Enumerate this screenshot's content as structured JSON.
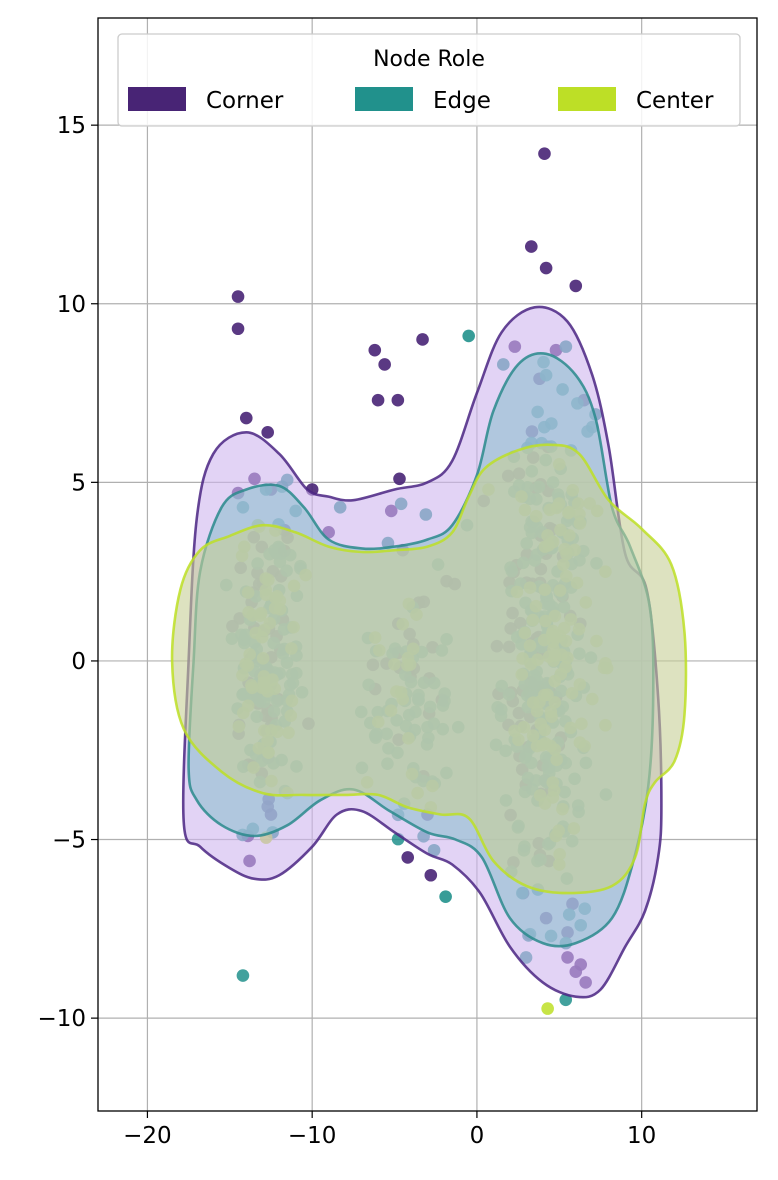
{
  "chart_data": {
    "type": "scatter",
    "title": "",
    "xlabel": "",
    "ylabel": "",
    "xlim": [
      -23,
      17
    ],
    "ylim": [
      -12.6,
      18
    ],
    "x_ticks": [
      -20,
      -10,
      0,
      10
    ],
    "y_ticks": [
      -10,
      -5,
      0,
      5,
      10,
      15
    ],
    "x_tick_labels": [
      "−20",
      "−10",
      "0",
      "10"
    ],
    "y_tick_labels": [
      "−10",
      "−5",
      "0",
      "5",
      "10",
      "15"
    ],
    "grid": true,
    "legend": {
      "title": "Node Role",
      "position": "top-center",
      "columns": 3
    },
    "series": [
      {
        "name": "Corner",
        "color": "#482475",
        "outliers": [
          [
            -14.5,
            10.2
          ],
          [
            -14.5,
            9.3
          ],
          [
            -14,
            6.8
          ],
          [
            -12.7,
            6.4
          ],
          [
            -13.5,
            5.1
          ],
          [
            -12.5,
            4.8
          ],
          [
            -14.5,
            4.7
          ],
          [
            -10,
            4.8
          ],
          [
            -9,
            3.6
          ],
          [
            -6.2,
            8.7
          ],
          [
            -5.6,
            8.3
          ],
          [
            -6,
            7.3
          ],
          [
            -4.8,
            7.3
          ],
          [
            -3.3,
            9
          ],
          [
            -4.7,
            5.1
          ],
          [
            -5.2,
            4.2
          ],
          [
            -4.5,
            3.1
          ],
          [
            3.3,
            11.6
          ],
          [
            4.1,
            14.2
          ],
          [
            4.2,
            11
          ],
          [
            6,
            10.5
          ],
          [
            2.3,
            8.8
          ],
          [
            4.8,
            8.7
          ],
          [
            3.8,
            7.9
          ],
          [
            6.5,
            7.3
          ],
          [
            -13.8,
            -5.6
          ],
          [
            -13.9,
            -4.9
          ],
          [
            -4.2,
            -5.5
          ],
          [
            -2.8,
            -6
          ],
          [
            -3,
            -4.3
          ],
          [
            5.5,
            -8.3
          ],
          [
            6,
            -8.7
          ],
          [
            6.3,
            -8.5
          ],
          [
            6.6,
            -9
          ],
          [
            4.2,
            -7.2
          ],
          [
            5.5,
            -7.6
          ],
          [
            5.8,
            -6.8
          ],
          [
            2.8,
            -6.5
          ],
          [
            -12.5,
            -4.3
          ]
        ],
        "clusters": [
          {
            "cx": -13,
            "cy": 0,
            "sx": 1.0,
            "sy": 2.4,
            "n": 45
          },
          {
            "cx": 3.5,
            "cy": 0.5,
            "sx": 1.2,
            "sy": 3.5,
            "n": 75
          },
          {
            "cx": -4,
            "cy": -0.5,
            "sx": 1.5,
            "sy": 2.0,
            "n": 20
          }
        ],
        "contour": [
          [
            -17.8,
            -4.5
          ],
          [
            -17.5,
            0
          ],
          [
            -17,
            4
          ],
          [
            -16,
            5.8
          ],
          [
            -14,
            6.4
          ],
          [
            -12,
            5.8
          ],
          [
            -10.3,
            4.8
          ],
          [
            -9,
            4.6
          ],
          [
            -7.5,
            4.5
          ],
          [
            -5,
            4.8
          ],
          [
            -3,
            5
          ],
          [
            -1.5,
            5.6
          ],
          [
            0,
            7.5
          ],
          [
            1.5,
            9.2
          ],
          [
            3.5,
            9.9
          ],
          [
            5.5,
            9.5
          ],
          [
            7,
            8
          ],
          [
            8,
            6
          ],
          [
            9,
            3
          ],
          [
            10.3,
            2
          ],
          [
            11,
            -1
          ],
          [
            11.2,
            -4
          ],
          [
            11,
            -5.5
          ],
          [
            10.2,
            -7
          ],
          [
            9,
            -8
          ],
          [
            7.5,
            -9.2
          ],
          [
            6,
            -9.4
          ],
          [
            4,
            -9
          ],
          [
            2,
            -8
          ],
          [
            0.2,
            -6.5
          ],
          [
            -1.5,
            -5.7
          ],
          [
            -3,
            -5.4
          ],
          [
            -5,
            -4.8
          ],
          [
            -7,
            -4.2
          ],
          [
            -8.5,
            -4.3
          ],
          [
            -10,
            -5.2
          ],
          [
            -12,
            -6
          ],
          [
            -13.5,
            -6.1
          ],
          [
            -15,
            -5.8
          ],
          [
            -16.8,
            -5.2
          ]
        ]
      },
      {
        "name": "Edge",
        "color": "#21918c",
        "outliers": [
          [
            -0.5,
            9.1
          ],
          [
            1.6,
            8.3
          ],
          [
            5.4,
            8.8
          ],
          [
            4.2,
            8
          ],
          [
            5.2,
            7.6
          ],
          [
            7.2,
            6.9
          ],
          [
            -8.3,
            4.3
          ],
          [
            -4.6,
            4.4
          ],
          [
            -3.1,
            4.1
          ],
          [
            -12.8,
            4.8
          ],
          [
            -11,
            4.2
          ],
          [
            -14.2,
            4.3
          ],
          [
            -13.6,
            -4.7
          ],
          [
            -12.4,
            -4.8
          ],
          [
            -2.6,
            -5.3
          ],
          [
            -1.9,
            -6.6
          ],
          [
            5.6,
            -7.1
          ],
          [
            4.5,
            -7.7
          ],
          [
            5.4,
            -7.9
          ],
          [
            6.3,
            -7.4
          ],
          [
            3.7,
            -6.4
          ],
          [
            -5.4,
            3.3
          ],
          [
            -0.6,
            3.8
          ]
        ],
        "clusters": [
          {
            "cx": -12.5,
            "cy": 0,
            "sx": 1.1,
            "sy": 2.1,
            "n": 95
          },
          {
            "cx": -4,
            "cy": -1.5,
            "sx": 1.2,
            "sy": 1.8,
            "n": 60
          },
          {
            "cx": 4.2,
            "cy": 0,
            "sx": 1.3,
            "sy": 3.3,
            "n": 210
          }
        ],
        "contour": [
          [
            -17.5,
            -3
          ],
          [
            -17.2,
            0
          ],
          [
            -16.8,
            2.5
          ],
          [
            -15.5,
            4.3
          ],
          [
            -14,
            4.8
          ],
          [
            -12,
            4.9
          ],
          [
            -10.5,
            4.3
          ],
          [
            -9,
            3.4
          ],
          [
            -7,
            3.15
          ],
          [
            -5,
            3.2
          ],
          [
            -3,
            3.4
          ],
          [
            -1.5,
            3.8
          ],
          [
            0,
            5.2
          ],
          [
            1,
            7
          ],
          [
            2.5,
            8.3
          ],
          [
            4.2,
            8.6
          ],
          [
            6,
            8
          ],
          [
            7.2,
            6.8
          ],
          [
            8.2,
            4.3
          ],
          [
            9.3,
            3.2
          ],
          [
            10.5,
            1.5
          ],
          [
            10.7,
            -1
          ],
          [
            10.4,
            -3.5
          ],
          [
            9.5,
            -5.6
          ],
          [
            8.2,
            -7.2
          ],
          [
            6,
            -7.9
          ],
          [
            4,
            -7.9
          ],
          [
            2,
            -7.2
          ],
          [
            0.3,
            -5.5
          ],
          [
            -1.3,
            -5
          ],
          [
            -3,
            -4.8
          ],
          [
            -5.3,
            -4.2
          ],
          [
            -7.5,
            -3.6
          ],
          [
            -9.5,
            -3.9
          ],
          [
            -11.5,
            -4.6
          ],
          [
            -13.5,
            -4.9
          ],
          [
            -15.5,
            -4.6
          ],
          [
            -17,
            -3.9
          ]
        ]
      },
      {
        "name": "Center",
        "color": "#bddf26",
        "outliers": [
          [
            -13.3,
            3.8
          ],
          [
            -11.1,
            2.1
          ],
          [
            -11.5,
            -3.7
          ],
          [
            -3.6,
            -3.7
          ],
          [
            -2.8,
            -4.1
          ],
          [
            -2.7,
            -3.5
          ],
          [
            0.7,
            4.8
          ],
          [
            7.3,
            4.2
          ],
          [
            7.8,
            2.5
          ],
          [
            7.9,
            -0.2
          ],
          [
            7.8,
            -1.8
          ],
          [
            5,
            -5.7
          ],
          [
            4.8,
            -4.9
          ]
        ],
        "clusters": [
          {
            "cx": -12.8,
            "cy": 0,
            "sx": 0.8,
            "sy": 1.8,
            "n": 55
          },
          {
            "cx": -5,
            "cy": 0,
            "sx": 0.8,
            "sy": 1.8,
            "n": 18
          },
          {
            "cx": 4.8,
            "cy": 0.3,
            "sx": 1.0,
            "sy": 2.6,
            "n": 100
          }
        ],
        "contour": [
          [
            -18.5,
            0
          ],
          [
            -18,
            2
          ],
          [
            -16.8,
            3.1
          ],
          [
            -15,
            3.5
          ],
          [
            -13,
            3.8
          ],
          [
            -11,
            3.6
          ],
          [
            -9,
            3.2
          ],
          [
            -7,
            3.05
          ],
          [
            -5,
            3.1
          ],
          [
            -3,
            3.2
          ],
          [
            -1.5,
            3.6
          ],
          [
            -0.5,
            4.6
          ],
          [
            0.5,
            5.4
          ],
          [
            2.5,
            5.9
          ],
          [
            4.5,
            6.05
          ],
          [
            6.2,
            5.8
          ],
          [
            8,
            4.5
          ],
          [
            10,
            3.7
          ],
          [
            11.8,
            2.7
          ],
          [
            12.6,
            0.8
          ],
          [
            12.6,
            -1.5
          ],
          [
            12,
            -2.8
          ],
          [
            10.8,
            -3.4
          ],
          [
            10.2,
            -4
          ],
          [
            9.6,
            -5.5
          ],
          [
            8.2,
            -6.3
          ],
          [
            5.5,
            -6.5
          ],
          [
            3,
            -6.3
          ],
          [
            1,
            -5.6
          ],
          [
            -0.5,
            -4.4
          ],
          [
            -2.2,
            -4.3
          ],
          [
            -4.2,
            -4.1
          ],
          [
            -6,
            -3.75
          ],
          [
            -8,
            -3.75
          ],
          [
            -10.5,
            -3.75
          ],
          [
            -13,
            -3.7
          ],
          [
            -15.5,
            -3.1
          ],
          [
            -17.8,
            -1.9
          ]
        ]
      }
    ]
  }
}
